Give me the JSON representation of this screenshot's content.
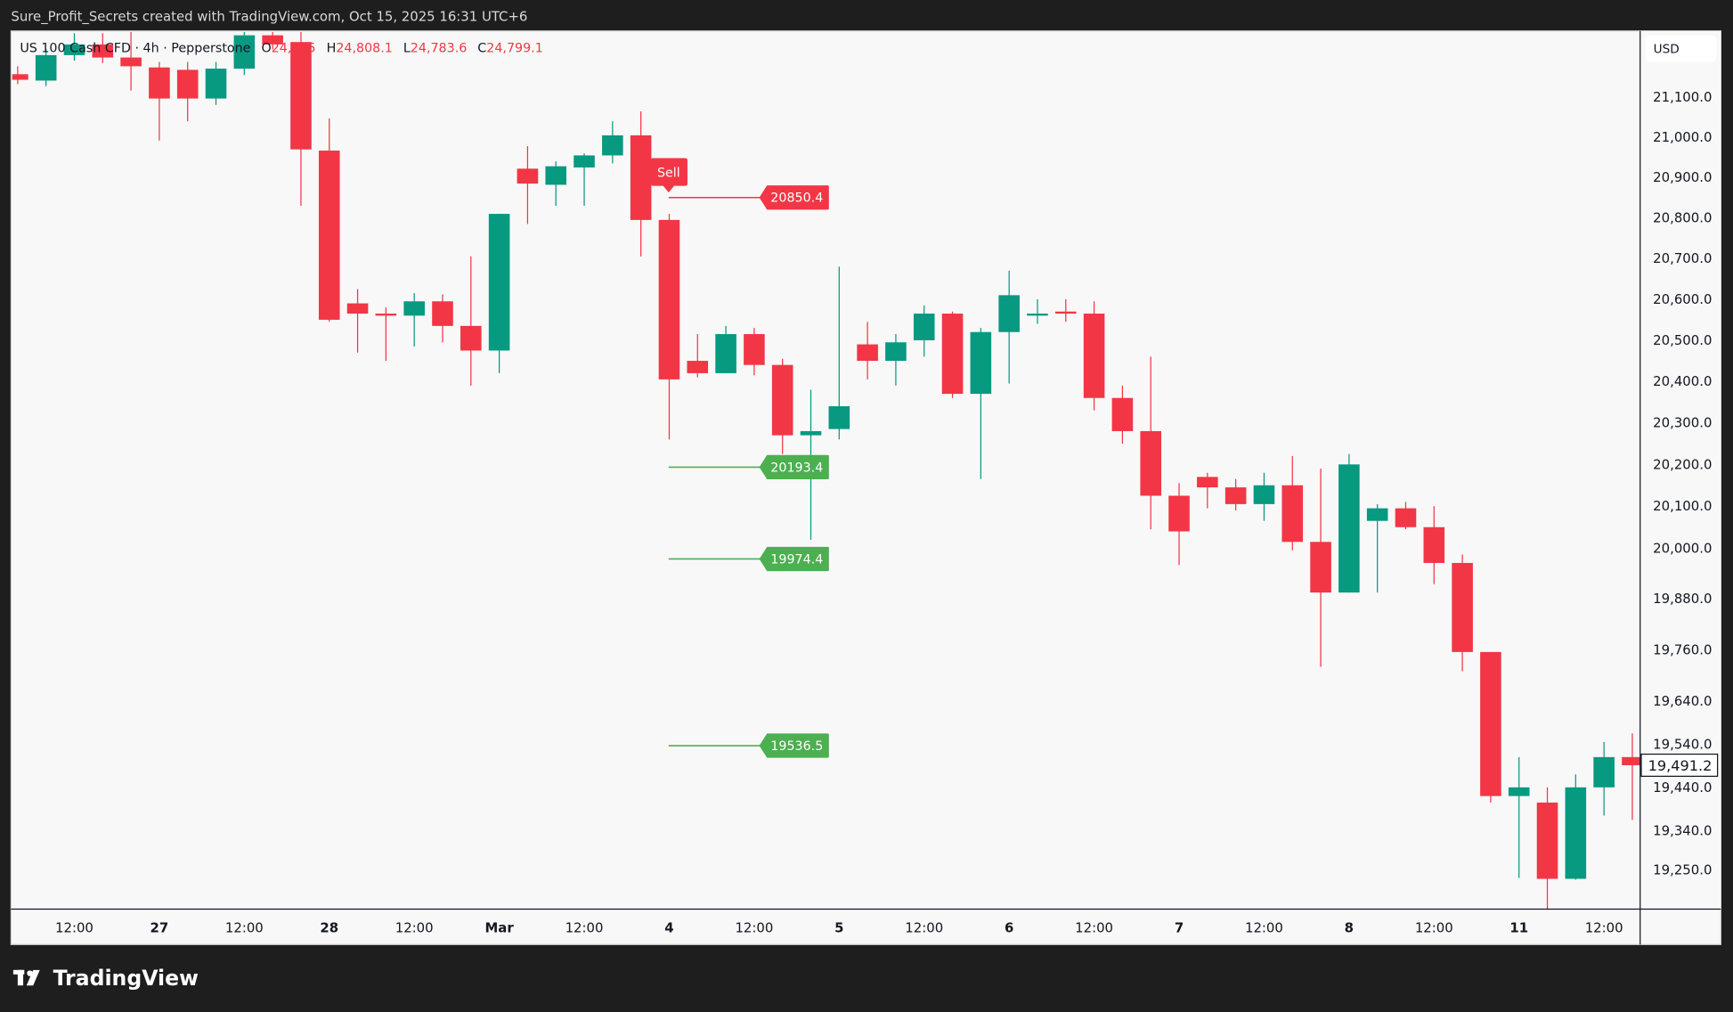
{
  "header": {
    "caption": "Sure_Profit_Secrets created with TradingView.com, Oct 15, 2025 16:31 UTC+6"
  },
  "legend": {
    "symbol": "US 100 Cash CFD · 4h · Pepperstone",
    "open_label": "O",
    "open_value": "24,805",
    "high_label": "H",
    "high_value": "24,808.1",
    "low_label": "L",
    "low_value": "24,783.6",
    "close_label": "C",
    "close_value": "24,799.1"
  },
  "price_axis": {
    "currency": "USD",
    "ticks": [
      "21,100.0",
      "21,000.0",
      "20,900.0",
      "20,800.0",
      "20,700.0",
      "20,600.0",
      "20,500.0",
      "20,400.0",
      "20,300.0",
      "20,200.0",
      "20,100.0",
      "20,000.0",
      "19,880.0",
      "19,760.0",
      "19,640.0",
      "19,540.0",
      "19,440.0",
      "19,340.0",
      "19,250.0"
    ],
    "current_price": "19,491.2",
    "scale": "log"
  },
  "time_axis": {
    "labels": [
      "12:00",
      "27",
      "12:00",
      "28",
      "12:00",
      "Mar",
      "12:00",
      "4",
      "12:00",
      "5",
      "12:00",
      "6",
      "12:00",
      "7",
      "12:00",
      "8",
      "12:00",
      "11",
      "12:00"
    ]
  },
  "colors": {
    "up": "#089981",
    "down": "#f23645",
    "target": "#4caf50",
    "background": "#f8f8f8",
    "frame": "#1e1e1e"
  },
  "chart_data": {
    "type": "candlestick",
    "interval": "4h",
    "candles": [
      [
        21158,
        21178,
        21133,
        21144
      ],
      [
        21142,
        21222,
        21128,
        21206
      ],
      [
        21206,
        21261,
        21192,
        21233
      ],
      [
        21233,
        21261,
        21186,
        21200
      ],
      [
        21200,
        21267,
        21117,
        21178
      ],
      [
        21175,
        21189,
        20992,
        21097
      ],
      [
        21169,
        21189,
        21040,
        21097
      ],
      [
        21097,
        21189,
        21081,
        21172
      ],
      [
        21172,
        21267,
        21156,
        21256
      ],
      [
        21256,
        21267,
        21220,
        21233
      ],
      [
        21239,
        21267,
        20830,
        20970
      ],
      [
        20967,
        21047,
        20545,
        20550
      ],
      [
        20590,
        20625,
        20470,
        20565
      ],
      [
        20565,
        20580,
        20450,
        20560
      ],
      [
        20560,
        20615,
        20485,
        20595
      ],
      [
        20595,
        20612,
        20495,
        20535
      ],
      [
        20535,
        20705,
        20390,
        20475
      ],
      [
        20475,
        20810,
        20420,
        20810
      ],
      [
        20922,
        20978,
        20785,
        20885
      ],
      [
        20882,
        20940,
        20830,
        20928
      ],
      [
        20925,
        20960,
        20830,
        20955
      ],
      [
        20955,
        21040,
        20935,
        21005
      ],
      [
        21005,
        21065,
        20705,
        20795
      ],
      [
        20795,
        20810,
        20260,
        20405
      ],
      [
        20450,
        20515,
        20410,
        20420
      ],
      [
        20420,
        20535,
        20420,
        20515
      ],
      [
        20515,
        20530,
        20415,
        20440
      ],
      [
        20440,
        20455,
        20225,
        20270
      ],
      [
        20270,
        20380,
        20020,
        20280
      ],
      [
        20285,
        20680,
        20260,
        20340
      ],
      [
        20490,
        20545,
        20405,
        20450
      ],
      [
        20450,
        20515,
        20390,
        20495
      ],
      [
        20500,
        20585,
        20460,
        20565
      ],
      [
        20565,
        20570,
        20360,
        20370
      ],
      [
        20370,
        20530,
        20165,
        20520
      ],
      [
        20520,
        20670,
        20395,
        20610
      ],
      [
        20560,
        20600,
        20540,
        20565
      ],
      [
        20570,
        20600,
        20545,
        20565
      ],
      [
        20565,
        20595,
        20330,
        20360
      ],
      [
        20360,
        20390,
        20250,
        20280
      ],
      [
        20280,
        20460,
        20045,
        20125
      ],
      [
        20125,
        20155,
        19960,
        20040
      ],
      [
        20170,
        20180,
        20095,
        20145
      ],
      [
        20145,
        20165,
        20090,
        20105
      ],
      [
        20105,
        20180,
        20065,
        20150
      ],
      [
        20150,
        20220,
        19995,
        20015
      ],
      [
        20015,
        20190,
        19720,
        19895
      ],
      [
        19895,
        20225,
        19895,
        20200
      ],
      [
        20065,
        20105,
        19895,
        20095
      ],
      [
        20095,
        20110,
        20045,
        20050
      ],
      [
        20050,
        20100,
        19915,
        19965
      ],
      [
        19965,
        19985,
        19710,
        19755
      ],
      [
        19755,
        19755,
        19405,
        19420
      ],
      [
        19420,
        19510,
        19232,
        19440
      ],
      [
        19405,
        19440,
        19160,
        19230
      ],
      [
        19230,
        19470,
        19228,
        19440
      ],
      [
        19440,
        19545,
        19375,
        19510
      ],
      [
        19510,
        19565,
        19365,
        19491.2
      ]
    ],
    "annotations": {
      "signal": "Sell",
      "entry": "20850.4",
      "targets": [
        "20193.4",
        "19974.4",
        "19536.5"
      ]
    }
  },
  "footer": {
    "brand": "TradingView"
  }
}
